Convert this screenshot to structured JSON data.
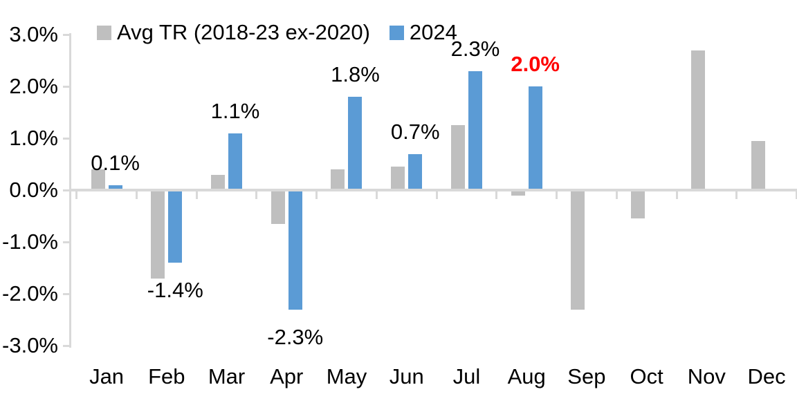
{
  "colors": {
    "avg_series": "#bfbfbf",
    "y2024_series": "#5b9bd5",
    "axis": "#d9d9d9",
    "text": "#000000",
    "highlight_red": "#ff0000",
    "background": "#ffffff"
  },
  "chart_data": {
    "type": "bar",
    "title": "",
    "xlabel": "",
    "ylabel": "",
    "categories": [
      "Jan",
      "Feb",
      "Mar",
      "Apr",
      "May",
      "Jun",
      "Jul",
      "Aug",
      "Sep",
      "Oct",
      "Nov",
      "Dec"
    ],
    "series": [
      {
        "name": "Avg TR (2018-23 ex-2020)",
        "color": "#bfbfbf",
        "values": [
          0.4,
          -1.7,
          0.3,
          -0.65,
          0.4,
          0.45,
          1.25,
          -0.1,
          -2.3,
          -0.55,
          2.7,
          0.95
        ]
      },
      {
        "name": "2024",
        "color": "#5b9bd5",
        "values": [
          0.1,
          -1.4,
          1.1,
          -2.3,
          1.8,
          0.7,
          2.3,
          2.0,
          null,
          null,
          null,
          null
        ]
      }
    ],
    "data_labels": [
      {
        "text": "0.1%",
        "color": "#000000",
        "bold": false
      },
      {
        "text": "-1.4%",
        "color": "#000000",
        "bold": false
      },
      {
        "text": "1.1%",
        "color": "#000000",
        "bold": false
      },
      {
        "text": "-2.3%",
        "color": "#000000",
        "bold": false
      },
      {
        "text": "1.8%",
        "color": "#000000",
        "bold": false
      },
      {
        "text": "0.7%",
        "color": "#000000",
        "bold": false
      },
      {
        "text": "2.3%",
        "color": "#000000",
        "bold": false
      },
      {
        "text": "2.0%",
        "color": "#ff0000",
        "bold": true
      },
      null,
      null,
      null,
      null
    ],
    "y_ticks": [
      "3.0%",
      "2.0%",
      "1.0%",
      "0.0%",
      "-1.0%",
      "-2.0%",
      "-3.0%"
    ],
    "ylim": [
      -3.0,
      3.0
    ],
    "grid": "zero-line-only",
    "legend_position": "top"
  }
}
